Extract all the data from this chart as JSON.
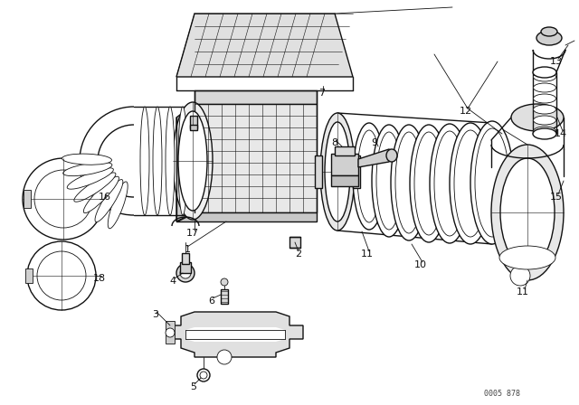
{
  "bg_color": "#ffffff",
  "line_color": "#111111",
  "watermark": "0005 878",
  "figsize": [
    6.4,
    4.48
  ],
  "dpi": 100
}
